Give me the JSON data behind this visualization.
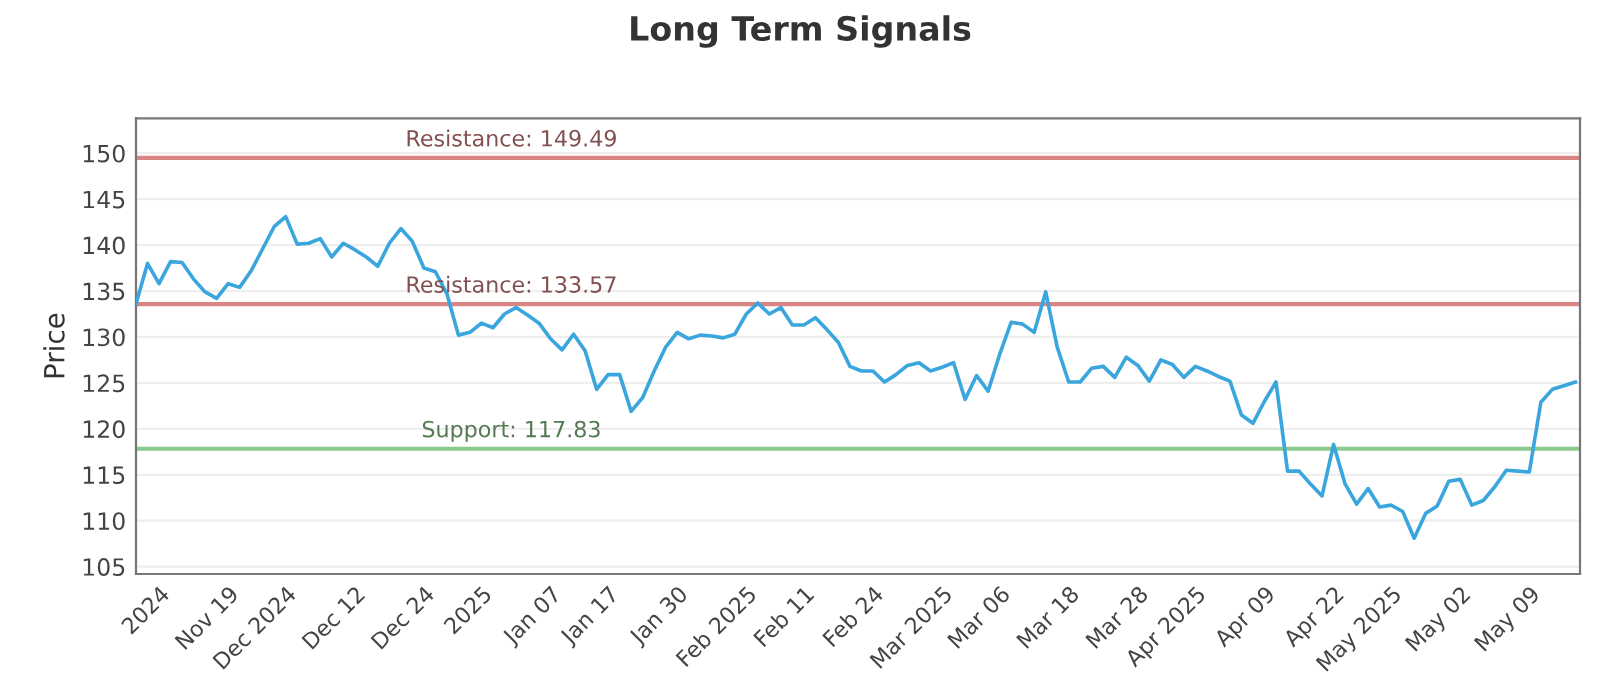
{
  "chart_data": {
    "type": "line",
    "title": "Long Term Signals",
    "ylabel": "Price",
    "categories": [
      null,
      null,
      "2024",
      null,
      null,
      null,
      null,
      null,
      "Nov 19",
      null,
      null,
      null,
      null,
      "Dec 2024",
      null,
      null,
      null,
      null,
      null,
      "Dec 12",
      null,
      null,
      null,
      null,
      null,
      "Dec 24",
      null,
      null,
      null,
      null,
      "2025",
      null,
      null,
      null,
      null,
      null,
      "Jan 07",
      null,
      null,
      null,
      null,
      "Jan 17",
      null,
      null,
      null,
      null,
      null,
      "Jan 30",
      null,
      null,
      null,
      null,
      null,
      "Feb 2025",
      null,
      null,
      null,
      null,
      "Feb 11",
      null,
      null,
      null,
      null,
      null,
      "Feb 24",
      null,
      null,
      null,
      null,
      null,
      "Mar 2025",
      null,
      null,
      null,
      null,
      "Mar 06",
      null,
      null,
      null,
      null,
      null,
      "Mar 18",
      null,
      null,
      null,
      null,
      null,
      "Mar 28",
      null,
      null,
      null,
      null,
      "Apr 2025",
      null,
      null,
      null,
      null,
      null,
      "Apr 09",
      null,
      null,
      null,
      null,
      null,
      "Apr 22",
      null,
      null,
      null,
      null,
      "May 2025",
      null,
      null,
      null,
      null,
      null,
      "May 02",
      null,
      null,
      null,
      null,
      null,
      "May 09",
      null,
      null,
      null,
      null
    ],
    "series": [
      {
        "color": "#3aa6dd",
        "values": [
          133.6,
          138.0,
          135.8,
          138.2,
          138.1,
          136.3,
          134.9,
          134.2,
          135.8,
          135.4,
          137.2,
          139.6,
          142.0,
          143.1,
          140.1,
          140.2,
          140.7,
          138.7,
          140.2,
          139.5,
          138.7,
          137.7,
          140.2,
          141.8,
          140.4,
          137.5,
          137.1,
          134.7,
          130.2,
          130.5,
          131.5,
          131.0,
          132.5,
          133.2,
          132.4,
          131.5,
          129.8,
          128.6,
          130.3,
          128.5,
          124.3,
          125.9,
          125.9,
          121.9,
          123.4,
          126.3,
          128.9,
          130.5,
          129.8,
          130.2,
          130.1,
          129.9,
          130.3,
          132.5,
          133.7,
          132.5,
          133.2,
          131.3,
          131.3,
          132.1,
          130.8,
          129.4,
          126.8,
          126.3,
          126.3,
          125.1,
          125.9,
          126.9,
          127.2,
          126.3,
          126.7,
          127.2,
          123.2,
          125.8,
          124.1,
          128.1,
          131.6,
          131.4,
          130.5,
          134.9,
          128.9,
          125.1,
          125.1,
          126.6,
          126.8,
          125.6,
          127.8,
          126.9,
          125.2,
          127.5,
          127.0,
          125.6,
          126.8,
          126.3,
          125.7,
          125.2,
          121.5,
          120.6,
          123.0,
          125.1,
          115.4,
          115.4,
          114.0,
          112.7,
          118.3,
          114.0,
          111.8,
          113.5,
          111.5,
          111.7,
          111.0,
          108.1,
          110.8,
          111.6,
          114.3,
          114.5,
          111.7,
          112.2,
          113.7,
          115.5,
          115.4,
          115.3,
          122.9,
          124.3,
          124.7,
          125.1
        ]
      }
    ],
    "ylim": [
      104.2,
      153.8
    ],
    "yticks": [
      105,
      110,
      115,
      120,
      125,
      130,
      135,
      140,
      145,
      150
    ],
    "grid": "y",
    "marker": "none",
    "line_style": "solid",
    "ref_lines": [
      {
        "axis": "y",
        "value": 149.49,
        "label": "Resistance: 149.49",
        "color": "#d98585"
      },
      {
        "axis": "y",
        "value": 133.57,
        "label": "Resistance: 133.57",
        "color": "#d98585"
      },
      {
        "axis": "y",
        "value": 117.83,
        "label": "Support: 117.83",
        "color": "#8cc98c"
      }
    ]
  }
}
